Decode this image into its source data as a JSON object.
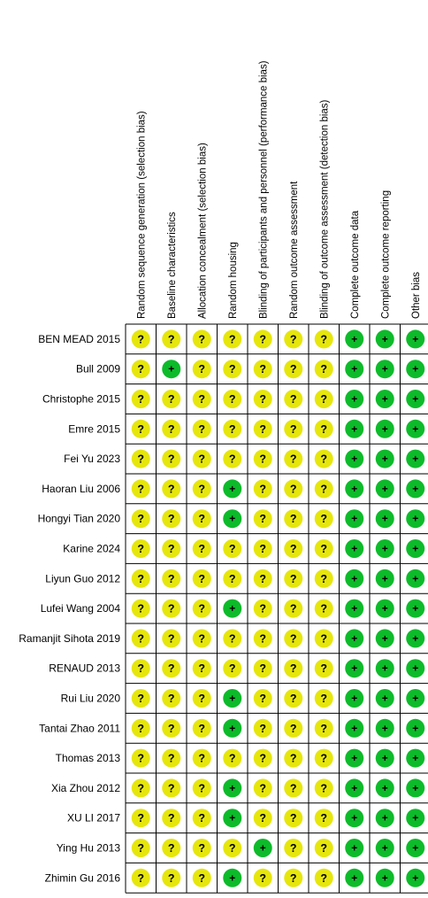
{
  "chart_data": {
    "type": "table",
    "domains": [
      "Random sequence generation (selection bias)",
      "Baseline characteristics",
      "Allocation concealment (selection bias)",
      "Random housing",
      "Blinding of participants and personnel (performance bias)",
      "Random outcome assessment",
      "Blinding of outcome assessment (detection bias)",
      "Complete outcome data",
      "Complete outcome reporting",
      "Other bias"
    ],
    "studies": [
      "BEN MEAD 2015",
      "Bull 2009",
      "Christophe 2015",
      "Emre 2015",
      "Fei Yu  2023",
      "Haoran Liu 2006",
      "Hongyi Tian 2020",
      "Karine 2024",
      "Liyun Guo 2012",
      "Lufei Wang 2004",
      "Ramanjit Sihota 2019",
      "RENAUD 2013",
      "Rui Liu 2020",
      "Tantai Zhao 2011",
      "Thomas 2013",
      "Xia Zhou 2012",
      "XU LI 2017",
      "Ying Hu 2013",
      "Zhimin Gu 2016"
    ],
    "judgements": [
      [
        "unclear",
        "unclear",
        "unclear",
        "unclear",
        "unclear",
        "unclear",
        "unclear",
        "low",
        "low",
        "low"
      ],
      [
        "unclear",
        "low",
        "unclear",
        "unclear",
        "unclear",
        "unclear",
        "unclear",
        "low",
        "low",
        "low"
      ],
      [
        "unclear",
        "unclear",
        "unclear",
        "unclear",
        "unclear",
        "unclear",
        "unclear",
        "low",
        "low",
        "low"
      ],
      [
        "unclear",
        "unclear",
        "unclear",
        "unclear",
        "unclear",
        "unclear",
        "unclear",
        "low",
        "low",
        "low"
      ],
      [
        "unclear",
        "unclear",
        "unclear",
        "unclear",
        "unclear",
        "unclear",
        "unclear",
        "low",
        "low",
        "low"
      ],
      [
        "unclear",
        "unclear",
        "unclear",
        "low",
        "unclear",
        "unclear",
        "unclear",
        "low",
        "low",
        "low"
      ],
      [
        "unclear",
        "unclear",
        "unclear",
        "low",
        "unclear",
        "unclear",
        "unclear",
        "low",
        "low",
        "low"
      ],
      [
        "unclear",
        "unclear",
        "unclear",
        "unclear",
        "unclear",
        "unclear",
        "unclear",
        "low",
        "low",
        "low"
      ],
      [
        "unclear",
        "unclear",
        "unclear",
        "unclear",
        "unclear",
        "unclear",
        "unclear",
        "low",
        "low",
        "low"
      ],
      [
        "unclear",
        "unclear",
        "unclear",
        "low",
        "unclear",
        "unclear",
        "unclear",
        "low",
        "low",
        "low"
      ],
      [
        "unclear",
        "unclear",
        "unclear",
        "unclear",
        "unclear",
        "unclear",
        "unclear",
        "low",
        "low",
        "low"
      ],
      [
        "unclear",
        "unclear",
        "unclear",
        "unclear",
        "unclear",
        "unclear",
        "unclear",
        "low",
        "low",
        "low"
      ],
      [
        "unclear",
        "unclear",
        "unclear",
        "low",
        "unclear",
        "unclear",
        "unclear",
        "low",
        "low",
        "low"
      ],
      [
        "unclear",
        "unclear",
        "unclear",
        "low",
        "unclear",
        "unclear",
        "unclear",
        "low",
        "low",
        "low"
      ],
      [
        "unclear",
        "unclear",
        "unclear",
        "unclear",
        "unclear",
        "unclear",
        "unclear",
        "low",
        "low",
        "low"
      ],
      [
        "unclear",
        "unclear",
        "unclear",
        "low",
        "unclear",
        "unclear",
        "unclear",
        "low",
        "low",
        "low"
      ],
      [
        "unclear",
        "unclear",
        "unclear",
        "low",
        "unclear",
        "unclear",
        "unclear",
        "low",
        "low",
        "low"
      ],
      [
        "unclear",
        "unclear",
        "unclear",
        "unclear",
        "low",
        "unclear",
        "unclear",
        "low",
        "low",
        "low"
      ],
      [
        "unclear",
        "unclear",
        "unclear",
        "low",
        "unclear",
        "unclear",
        "unclear",
        "low",
        "low",
        "low"
      ]
    ],
    "symbols": {
      "low": "+",
      "unclear": "?"
    },
    "colors": {
      "low": "#0dbb2a",
      "unclear": "#e6e60c",
      "grid": "#000000",
      "text": "#000000"
    },
    "icons": {
      "low": "low-risk-icon",
      "unclear": "unclear-risk-icon"
    }
  }
}
